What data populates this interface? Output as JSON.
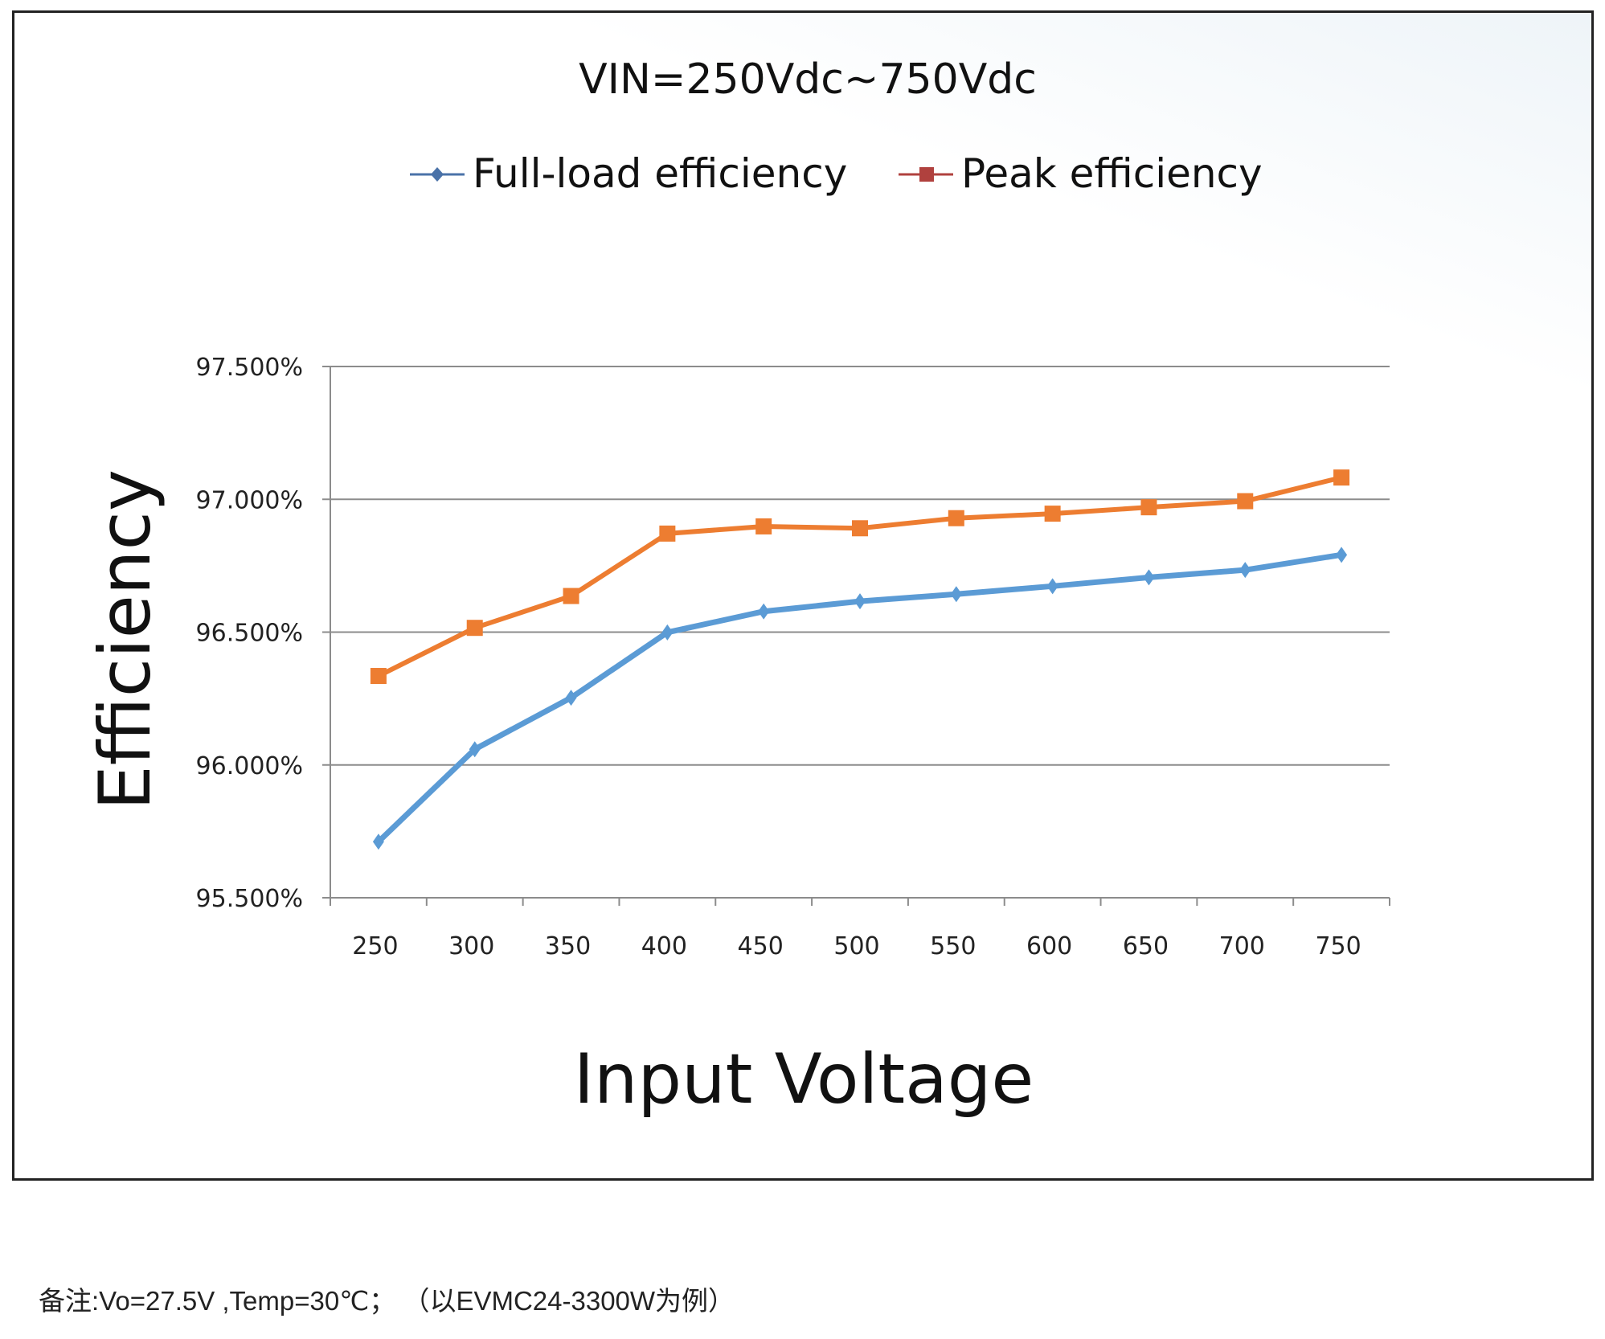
{
  "chart_data": {
    "type": "line",
    "title": "VIN=250Vdc~750Vdc",
    "xlabel": "Input Voltage",
    "ylabel": "Efficiency",
    "categories": [
      "250",
      "300",
      "350",
      "400",
      "450",
      "500",
      "550",
      "600",
      "650",
      "700",
      "750"
    ],
    "y_ticks": [
      "95.500%",
      "96.000%",
      "96.500%",
      "97.000%",
      "97.500%"
    ],
    "ylim": [
      95.5,
      97.5
    ],
    "grid": "horizontal",
    "legend_position": "top",
    "series": [
      {
        "name": "Full-load efficiency",
        "color": "#5b9bd5",
        "legend_color": "#4a72a8",
        "marker": "diamond",
        "values": [
          95.711,
          96.059,
          96.253,
          96.499,
          96.578,
          96.616,
          96.643,
          96.673,
          96.706,
          96.734,
          96.791
        ]
      },
      {
        "name": "Peak efficiency",
        "color": "#ed7d31",
        "legend_color": "#b0413e",
        "marker": "square",
        "values": [
          96.335,
          96.516,
          96.636,
          96.871,
          96.898,
          96.891,
          96.929,
          96.946,
          96.97,
          96.993,
          97.082
        ]
      }
    ]
  },
  "footnote": "备注:Vo=27.5V ,Temp=30℃； （以EVMC24-3300W为例）"
}
